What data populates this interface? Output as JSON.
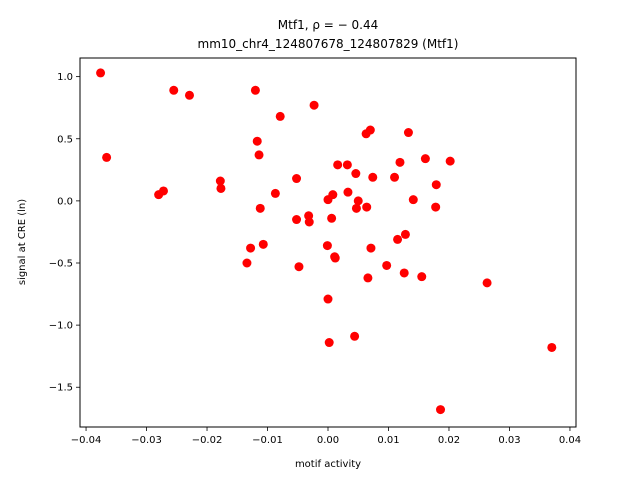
{
  "chart_data": {
    "type": "scatter",
    "title_line1": "Mtf1, ρ = − 0.44",
    "title_line2": "mm10_chr4_124807678_124807829 (Mtf1)",
    "xlabel": "motif activity",
    "ylabel": "signal at CRE (ln)",
    "xlim": [
      -0.041,
      0.041
    ],
    "ylim": [
      -1.82,
      1.15
    ],
    "xticks": [
      -0.04,
      -0.03,
      -0.02,
      -0.01,
      0.0,
      0.01,
      0.02,
      0.03,
      0.04
    ],
    "xtick_labels": [
      "−0.04",
      "−0.03",
      "−0.02",
      "−0.01",
      "0.00",
      "0.01",
      "0.02",
      "0.03",
      "0.04"
    ],
    "yticks": [
      1.0,
      0.5,
      0.0,
      -0.5,
      -1.0,
      -1.5
    ],
    "ytick_labels": [
      "1.0",
      "0.5",
      "0.0",
      "−0.5",
      "−1.0",
      "−1.5"
    ],
    "grid": false,
    "marker_color": "#ff0000",
    "points": [
      {
        "x": -0.0376,
        "y": 1.03
      },
      {
        "x": -0.0366,
        "y": 0.35
      },
      {
        "x": -0.028,
        "y": 0.05
      },
      {
        "x": -0.0272,
        "y": 0.08
      },
      {
        "x": -0.0255,
        "y": 0.89
      },
      {
        "x": -0.0229,
        "y": 0.85
      },
      {
        "x": -0.0178,
        "y": 0.16
      },
      {
        "x": -0.0177,
        "y": 0.1
      },
      {
        "x": -0.0134,
        "y": -0.5
      },
      {
        "x": -0.0128,
        "y": -0.38
      },
      {
        "x": -0.012,
        "y": 0.89
      },
      {
        "x": -0.0117,
        "y": 0.48
      },
      {
        "x": -0.0114,
        "y": 0.37
      },
      {
        "x": -0.0112,
        "y": -0.06
      },
      {
        "x": -0.0107,
        "y": -0.35
      },
      {
        "x": -0.0087,
        "y": 0.06
      },
      {
        "x": -0.0079,
        "y": 0.68
      },
      {
        "x": -0.0052,
        "y": 0.18
      },
      {
        "x": -0.0052,
        "y": -0.15
      },
      {
        "x": -0.0048,
        "y": -0.53
      },
      {
        "x": -0.0032,
        "y": -0.12
      },
      {
        "x": -0.0031,
        "y": -0.17
      },
      {
        "x": -0.0023,
        "y": 0.77
      },
      {
        "x": -0.0001,
        "y": -0.36
      },
      {
        "x": 0.0,
        "y": 0.01
      },
      {
        "x": 0.0,
        "y": -0.79
      },
      {
        "x": 0.0002,
        "y": -1.14
      },
      {
        "x": 0.0006,
        "y": -0.14
      },
      {
        "x": 0.0008,
        "y": 0.05
      },
      {
        "x": 0.0011,
        "y": -0.45
      },
      {
        "x": 0.0012,
        "y": -0.46
      },
      {
        "x": 0.0016,
        "y": 0.29
      },
      {
        "x": 0.0032,
        "y": 0.29
      },
      {
        "x": 0.0033,
        "y": 0.07
      },
      {
        "x": 0.0044,
        "y": -1.09
      },
      {
        "x": 0.0046,
        "y": 0.22
      },
      {
        "x": 0.0047,
        "y": -0.06
      },
      {
        "x": 0.005,
        "y": 0.0
      },
      {
        "x": 0.0063,
        "y": 0.54
      },
      {
        "x": 0.0064,
        "y": -0.05
      },
      {
        "x": 0.0066,
        "y": -0.62
      },
      {
        "x": 0.007,
        "y": 0.57
      },
      {
        "x": 0.0071,
        "y": -0.38
      },
      {
        "x": 0.0074,
        "y": 0.19
      },
      {
        "x": 0.0097,
        "y": -0.52
      },
      {
        "x": 0.011,
        "y": 0.19
      },
      {
        "x": 0.0115,
        "y": -0.31
      },
      {
        "x": 0.0119,
        "y": 0.31
      },
      {
        "x": 0.0126,
        "y": -0.58
      },
      {
        "x": 0.0128,
        "y": -0.27
      },
      {
        "x": 0.0133,
        "y": 0.55
      },
      {
        "x": 0.0141,
        "y": 0.01
      },
      {
        "x": 0.0155,
        "y": -0.61
      },
      {
        "x": 0.0161,
        "y": 0.34
      },
      {
        "x": 0.0179,
        "y": 0.13
      },
      {
        "x": 0.0178,
        "y": -0.05
      },
      {
        "x": 0.0186,
        "y": -1.68
      },
      {
        "x": 0.0202,
        "y": 0.32
      },
      {
        "x": 0.0263,
        "y": -0.66
      },
      {
        "x": 0.037,
        "y": -1.18
      }
    ]
  }
}
